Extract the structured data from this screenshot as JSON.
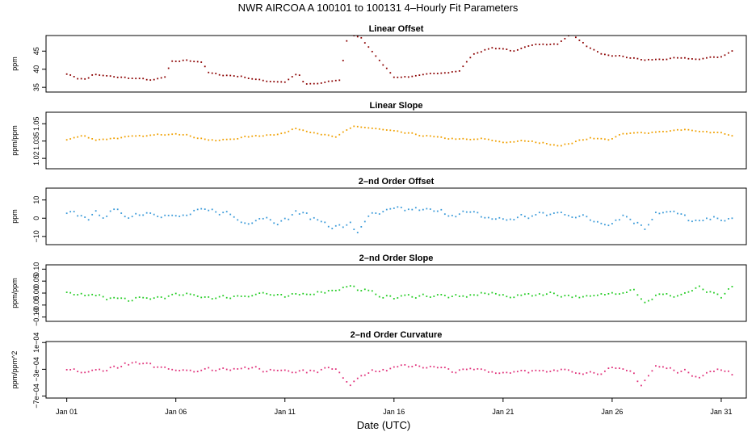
{
  "title": "NWR   AIRCOA A   100101 to 100131   4–Hourly Fit Parameters",
  "xlabel": "Date (UTC)",
  "chart_data": {
    "type": "scatter",
    "x_unit": "days (2010-01)",
    "x_ticks": [
      {
        "value": 1,
        "label": "Jan 01"
      },
      {
        "value": 6,
        "label": "Jan 06"
      },
      {
        "value": 11,
        "label": "Jan 11"
      },
      {
        "value": 16,
        "label": "Jan 16"
      },
      {
        "value": 21,
        "label": "Jan 21"
      },
      {
        "value": 26,
        "label": "Jan 26"
      },
      {
        "value": 31,
        "label": "Jan 31"
      }
    ],
    "xlim": [
      0.05,
      32.15
    ],
    "panels": [
      {
        "title": "Linear Offset",
        "ylabel": "ppm",
        "color": "#8b0000",
        "ylim": [
          33.7,
          49.3
        ],
        "yticks": [
          {
            "value": 35,
            "label": "35"
          },
          {
            "value": 40,
            "label": "40"
          },
          {
            "value": 45,
            "label": "45"
          }
        ],
        "anchors": [
          [
            1,
            38.8
          ],
          [
            1.5,
            37.5
          ],
          [
            1.9,
            37.2
          ],
          [
            2.2,
            38.5
          ],
          [
            3,
            38
          ],
          [
            4,
            37.5
          ],
          [
            5,
            37
          ],
          [
            5.5,
            37.8
          ],
          [
            5.8,
            42
          ],
          [
            6.5,
            42.5
          ],
          [
            7.2,
            42
          ],
          [
            7.5,
            39
          ],
          [
            8,
            38.5
          ],
          [
            9,
            38
          ],
          [
            10,
            36.8
          ],
          [
            11,
            36.5
          ],
          [
            11.6,
            39
          ],
          [
            11.9,
            35.8
          ],
          [
            12.5,
            36
          ],
          [
            13.5,
            37
          ],
          [
            13.9,
            50
          ],
          [
            14.5,
            48.5
          ],
          [
            16,
            37.8
          ],
          [
            17,
            38
          ],
          [
            18,
            39
          ],
          [
            19,
            39.5
          ],
          [
            19.6,
            44
          ],
          [
            20.5,
            46
          ],
          [
            21.5,
            45
          ],
          [
            22.5,
            47
          ],
          [
            23.5,
            46.8
          ],
          [
            24.1,
            50
          ],
          [
            24.8,
            46.5
          ],
          [
            25.5,
            44
          ],
          [
            26.5,
            43.5
          ],
          [
            27.5,
            42.5
          ],
          [
            29,
            43
          ],
          [
            30,
            42.8
          ],
          [
            31,
            43.5
          ],
          [
            31.5,
            45
          ]
        ],
        "jitter": 0.25
      },
      {
        "title": "Linear Slope",
        "ylabel": "ppm/ppm",
        "color": "#f0a000",
        "ylim": [
          1.011,
          1.06
        ],
        "yticks": [
          {
            "value": 1.02,
            "label": "1.02"
          },
          {
            "value": 1.035,
            "label": "1.035"
          },
          {
            "value": 1.05,
            "label": "1.05"
          }
        ],
        "anchors": [
          [
            1,
            1.036
          ],
          [
            1.8,
            1.04
          ],
          [
            2.3,
            1.036
          ],
          [
            3.5,
            1.038
          ],
          [
            5,
            1.04
          ],
          [
            6,
            1.042
          ],
          [
            7,
            1.038
          ],
          [
            7.8,
            1.035
          ],
          [
            9,
            1.038
          ],
          [
            10,
            1.04
          ],
          [
            11,
            1.042
          ],
          [
            11.5,
            1.046
          ],
          [
            12.5,
            1.042
          ],
          [
            13.3,
            1.038
          ],
          [
            14.2,
            1.048
          ],
          [
            15,
            1.046
          ],
          [
            16.5,
            1.042
          ],
          [
            18,
            1.038
          ],
          [
            19.5,
            1.036
          ],
          [
            20,
            1.037
          ],
          [
            21,
            1.034
          ],
          [
            22,
            1.035
          ],
          [
            23,
            1.033
          ],
          [
            23.7,
            1.031
          ],
          [
            25,
            1.038
          ],
          [
            25.8,
            1.036
          ],
          [
            26.5,
            1.041
          ],
          [
            28,
            1.043
          ],
          [
            29.5,
            1.045
          ],
          [
            30,
            1.043
          ],
          [
            31,
            1.042
          ],
          [
            31.5,
            1.039
          ]
        ],
        "jitter": 0.0009
      },
      {
        "title": "2–nd Order Offset",
        "ylabel": "ppm",
        "color": "#3a9ad9",
        "ylim": [
          -14.5,
          16.5
        ],
        "yticks": [
          {
            "value": -10,
            "label": "−10"
          },
          {
            "value": 0,
            "label": "0"
          },
          {
            "value": 10,
            "label": "10"
          }
        ],
        "anchors": [
          [
            1,
            2
          ],
          [
            2,
            1
          ],
          [
            3,
            3
          ],
          [
            4,
            2
          ],
          [
            5,
            4
          ],
          [
            6,
            0
          ],
          [
            7,
            3
          ],
          [
            8,
            4
          ],
          [
            8.5,
            2
          ],
          [
            9,
            -2
          ],
          [
            10,
            1
          ],
          [
            11,
            -2
          ],
          [
            11.5,
            4
          ],
          [
            12,
            1
          ],
          [
            13,
            -3
          ],
          [
            13.5,
            -5
          ],
          [
            14,
            -4
          ],
          [
            14.3,
            -8
          ],
          [
            14.7,
            0
          ],
          [
            16,
            4
          ],
          [
            17,
            5
          ],
          [
            18,
            3
          ],
          [
            19,
            3
          ],
          [
            20,
            1
          ],
          [
            21,
            -1
          ],
          [
            22,
            1
          ],
          [
            23,
            2
          ],
          [
            24,
            3
          ],
          [
            25,
            -1
          ],
          [
            26,
            -2
          ],
          [
            26.5,
            2
          ],
          [
            27.5,
            -5
          ],
          [
            28,
            4
          ],
          [
            29,
            2
          ],
          [
            30,
            -3
          ],
          [
            31,
            1
          ],
          [
            31.5,
            -2
          ]
        ],
        "jitter": 2.6
      },
      {
        "title": "2–nd Order Slope",
        "ylabel": "ppm/ppm",
        "color": "#22cc22",
        "ylim": [
          -0.118,
          0.118
        ],
        "yticks": [
          {
            "value": -0.1,
            "label": "−0.10"
          },
          {
            "value": -0.05,
            "label": "−0.05"
          },
          {
            "value": 0.0,
            "label": "0.00"
          },
          {
            "value": 0.05,
            "label": "0.05"
          },
          {
            "value": 0.1,
            "label": "0.10"
          }
        ],
        "anchors": [
          [
            1,
            0
          ],
          [
            2,
            -0.01
          ],
          [
            3,
            -0.02
          ],
          [
            4,
            -0.03
          ],
          [
            5,
            -0.02
          ],
          [
            6,
            -0.01
          ],
          [
            7,
            -0.01
          ],
          [
            8,
            -0.02
          ],
          [
            9,
            -0.01
          ],
          [
            10,
            0
          ],
          [
            11,
            -0.02
          ],
          [
            12,
            0
          ],
          [
            13,
            0.01
          ],
          [
            14,
            0.03
          ],
          [
            14.5,
            0.01
          ],
          [
            16,
            -0.02
          ],
          [
            17,
            -0.01
          ],
          [
            18,
            -0.01
          ],
          [
            19,
            -0.02
          ],
          [
            20,
            0
          ],
          [
            21,
            -0.01
          ],
          [
            22,
            -0.01
          ],
          [
            23,
            0
          ],
          [
            24,
            -0.01
          ],
          [
            25,
            -0.02
          ],
          [
            26,
            0
          ],
          [
            27,
            0.02
          ],
          [
            27.5,
            -0.04
          ],
          [
            28,
            -0.01
          ],
          [
            29,
            -0.01
          ],
          [
            30,
            0.02
          ],
          [
            31,
            -0.02
          ],
          [
            31.5,
            0.02
          ]
        ],
        "jitter": 0.012
      },
      {
        "title": "2–nd Order Curvature",
        "ylabel": "ppm/ppm^2",
        "color": "#e0307a",
        "ylim": [
          -0.00073,
          0.000115
        ],
        "yticks": [
          {
            "value": 0.0001,
            "label": "1e−04"
          },
          {
            "value": -0.0003,
            "label": "−3e−04"
          },
          {
            "value": -0.0007,
            "label": "−7e−04"
          }
        ],
        "anchors": [
          [
            1,
            -0.00031
          ],
          [
            2,
            -0.00035
          ],
          [
            3,
            -0.00028
          ],
          [
            4,
            -0.00021
          ],
          [
            5,
            -0.00026
          ],
          [
            6,
            -0.00029
          ],
          [
            7,
            -0.00031
          ],
          [
            8,
            -0.0003
          ],
          [
            9,
            -0.00026
          ],
          [
            10,
            -0.00032
          ],
          [
            11,
            -0.0003
          ],
          [
            12,
            -0.00033
          ],
          [
            13,
            -0.00029
          ],
          [
            13.5,
            -0.00034
          ],
          [
            14,
            -0.00052
          ],
          [
            14.5,
            -0.00036
          ],
          [
            16,
            -0.00029
          ],
          [
            17,
            -0.00023
          ],
          [
            18,
            -0.00029
          ],
          [
            19,
            -0.00033
          ],
          [
            20,
            -0.0003
          ],
          [
            21,
            -0.00035
          ],
          [
            22,
            -0.0003
          ],
          [
            23,
            -0.00036
          ],
          [
            24,
            -0.0003
          ],
          [
            25,
            -0.00035
          ],
          [
            26,
            -0.00031
          ],
          [
            27,
            -0.00034
          ],
          [
            27.3,
            -0.00055
          ],
          [
            28,
            -0.00026
          ],
          [
            29,
            -0.00031
          ],
          [
            30,
            -0.00039
          ],
          [
            31,
            -0.0003
          ],
          [
            31.6,
            -0.00041
          ]
        ],
        "jitter": 4.5e-05
      }
    ]
  }
}
